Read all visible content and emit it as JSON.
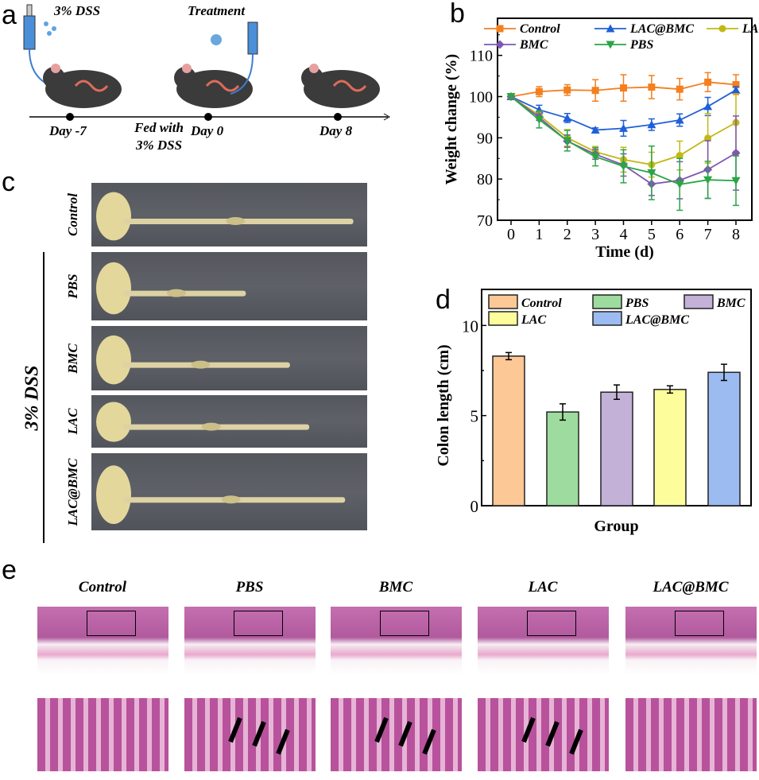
{
  "panel_labels": {
    "a": "a",
    "b": "b",
    "c": "c",
    "d": "d",
    "e": "e"
  },
  "panel_a": {
    "dss_label": "3% DSS",
    "treatment_label": "Treatment",
    "timeline": [
      "Day -7",
      "Day 0",
      "Day 8"
    ],
    "fed_label_1": "Fed with",
    "fed_label_2": "3% DSS"
  },
  "panel_c": {
    "group_label": "3% DSS",
    "rows": [
      "Control",
      "PBS",
      "BMC",
      "LAC",
      "LAC@BMC"
    ]
  },
  "panel_e": {
    "titles": [
      "Control",
      "PBS",
      "BMC",
      "LAC",
      "LAC@BMC"
    ]
  },
  "colors": {
    "Control": "#f47f1f",
    "LAC@BMC": "#1f5fd9",
    "LAC": "#c2b814",
    "BMC": "#7f55b3",
    "PBS": "#2aa645"
  },
  "chart_data": [
    {
      "type": "line",
      "xlabel": "Time (d)",
      "ylabel": "Weight change (%)",
      "xlim": [
        0,
        8
      ],
      "ylim": [
        70,
        119
      ],
      "xticks": [
        0,
        1,
        2,
        3,
        4,
        5,
        6,
        7,
        8
      ],
      "yticks": [
        70,
        80,
        90,
        100,
        110
      ],
      "legend_placement": "top",
      "error_bars": true,
      "x": [
        0,
        1,
        2,
        3,
        4,
        5,
        6,
        7,
        8
      ],
      "series": [
        {
          "name": "Control",
          "marker": "square",
          "color": "#f47f1f",
          "values": [
            100,
            101.2,
            101.6,
            101.5,
            102.1,
            102.3,
            101.8,
            103.5,
            102.9
          ],
          "errors": [
            0,
            1.2,
            1.3,
            2.6,
            3.2,
            2.8,
            2.6,
            2.3,
            2.4
          ]
        },
        {
          "name": "LAC@BMC",
          "marker": "triangle-up",
          "color": "#1f5fd9",
          "values": [
            100,
            96.8,
            94.8,
            91.9,
            92.3,
            93.2,
            94.3,
            97.6,
            101.6
          ],
          "errors": [
            0,
            1.1,
            1.1,
            0.5,
            1.9,
            1.4,
            1.5,
            2.2,
            0.8
          ]
        },
        {
          "name": "LAC",
          "marker": "circle",
          "color": "#c2b814",
          "values": [
            100,
            95.5,
            90.0,
            86.6,
            84.7,
            83.5,
            85.7,
            89.9,
            93.7
          ],
          "errors": [
            0,
            1,
            2,
            1.3,
            3,
            3,
            3.5,
            6,
            7
          ]
        },
        {
          "name": "BMC",
          "marker": "diamond",
          "color": "#7f55b3",
          "values": [
            100,
            95,
            89.2,
            86,
            83.4,
            78.8,
            79.7,
            82.3,
            86.3
          ],
          "errors": [
            0,
            0.8,
            1.5,
            1.2,
            2.7,
            2.8,
            4.5,
            7,
            9
          ]
        },
        {
          "name": "PBS",
          "marker": "triangle-down",
          "color": "#2aa645",
          "values": [
            100,
            94.4,
            89.3,
            85.4,
            83.1,
            81.5,
            78.7,
            79.8,
            79.6
          ],
          "errors": [
            0,
            2,
            2.5,
            2.2,
            4,
            6.5,
            6.3,
            4.5,
            6
          ]
        }
      ]
    },
    {
      "type": "bar",
      "xlabel": "Group",
      "ylabel": "Colon length (cm)",
      "ylim": [
        0,
        12
      ],
      "yticks": [
        0,
        5,
        10
      ],
      "legend_placement": "top",
      "error_bars": true,
      "categories": [
        "Control",
        "PBS",
        "BMC",
        "LAC",
        "LAC@BMC"
      ],
      "values": [
        8.3,
        5.2,
        6.3,
        6.45,
        7.4
      ],
      "errors": [
        0.2,
        0.45,
        0.4,
        0.2,
        0.45
      ],
      "colors": [
        "#fcc896",
        "#9edb9e",
        "#c3b1d8",
        "#fdfd9c",
        "#9bbbf1"
      ],
      "legend_order": [
        "Control",
        "PBS",
        "BMC",
        "LAC",
        "LAC@BMC"
      ]
    }
  ]
}
